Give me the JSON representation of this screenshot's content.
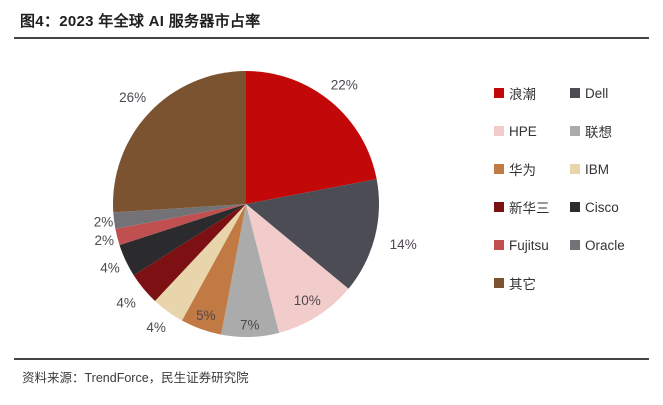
{
  "header": {
    "title": "图4：2023 年全球 AI 服务器市占率"
  },
  "footer": {
    "source": "资料来源：TrendForce，民生证券研究院"
  },
  "chart_data": {
    "type": "pie",
    "title": "2023 年全球 AI 服务器市占率",
    "unit": "%",
    "start_angle_deg": 0,
    "direction": "clockwise",
    "legend_position": "right",
    "legend_columns": 2,
    "series": [
      {
        "name": "浪潮",
        "value": 22,
        "label": "22%",
        "color": "#c20808"
      },
      {
        "name": "Dell",
        "value": 14,
        "label": "14%",
        "color": "#4c4c55"
      },
      {
        "name": "HPE",
        "value": 10,
        "label": "10%",
        "color": "#f2cbcb"
      },
      {
        "name": "联想",
        "value": 7,
        "label": "7%",
        "color": "#ababab"
      },
      {
        "name": "华为",
        "value": 5,
        "label": "5%",
        "color": "#c17a43"
      },
      {
        "name": "IBM",
        "value": 4,
        "label": "4%",
        "color": "#e8d5ac"
      },
      {
        "name": "新华三",
        "value": 4,
        "label": "4%",
        "color": "#7c1012"
      },
      {
        "name": "Cisco",
        "value": 4,
        "label": "4%",
        "color": "#2b2b2e"
      },
      {
        "name": "Fujitsu",
        "value": 2,
        "label": "2%",
        "color": "#c05050"
      },
      {
        "name": "Oracle",
        "value": 2,
        "label": "2%",
        "color": "#737377"
      },
      {
        "name": "其它",
        "value": 26,
        "label": "26%",
        "color": "#7b5330"
      }
    ]
  }
}
